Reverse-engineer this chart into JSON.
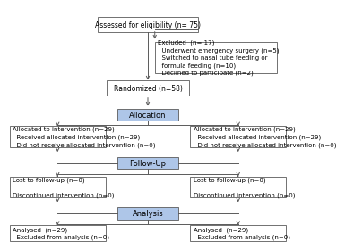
{
  "bg_color": "#ffffff",
  "box_border_color": "#5a5a5a",
  "blue_box_color": "#aec6e8",
  "text_color": "#000000",
  "arrow_color": "#5a5a5a",
  "eligibility_text": "Assessed for eligibility (n= 75)",
  "excluded_text": "Excluded  (n= 17)\n  Underwent emergency surgery (n=5)\n  Switched to nasal tube feeding or\n  formula feeding (n=10)\n  Declined to participate (n=2)",
  "randomized_text": "Randomized (n=58)",
  "allocation_text": "Allocation",
  "alloc_left_text": "Allocated to intervention (n=29)\n  Received allocated intervention (n=29)\n  Did not receive allocated intervention (n=0)",
  "alloc_right_text": "Allocated to intervention (n=29)\n  Received allocated intervention (n=29)\n  Did not receive allocated intervention (n=0)",
  "followup_text": "Follow-Up",
  "followup_left_text": "Lost to follow-up (n=0)\n\nDiscontinued intervention (n=0)",
  "followup_right_text": "Lost to follow-up (n=0)\n\nDiscontinued intervention (n=0)",
  "analysis_text": "Analysis",
  "analysis_left_text": "Analysed  (n=29)\n  Excluded from analysis (n=0)",
  "analysis_right_text": "Analysed  (n=29)\n  Excluded from analysis (n=0)"
}
